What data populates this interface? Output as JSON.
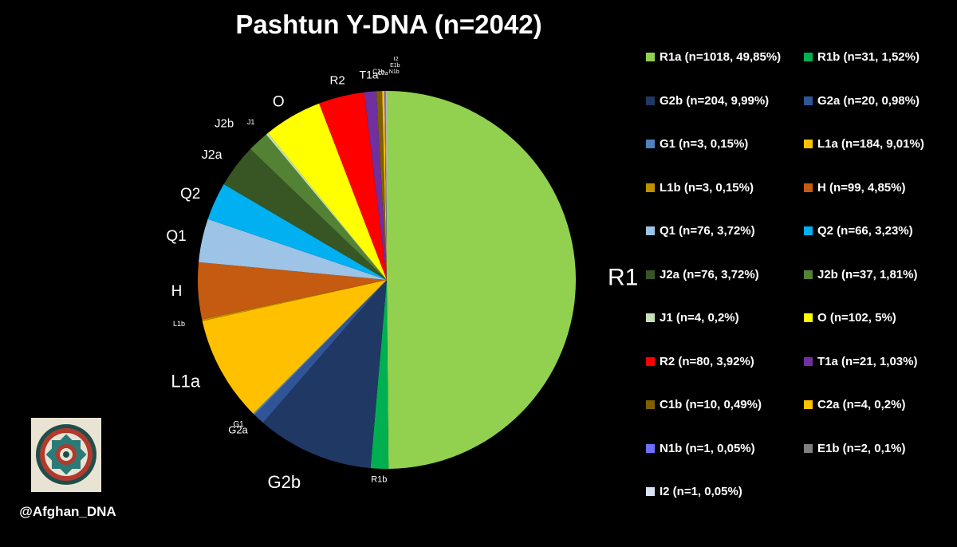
{
  "title": "Pashtun Y-DNA (n=2042)",
  "handle": "@Afghan_DNA",
  "chart_data": {
    "type": "pie",
    "title": "Pashtun Y-DNA (n=2042)",
    "total": 2042,
    "slices": [
      {
        "label": "R1a",
        "n": 1018,
        "percent": 49.85,
        "color": "#92d050",
        "legend": "R1a (n=1018, 49,85%)",
        "pie_label": "R1a"
      },
      {
        "label": "R1b",
        "n": 31,
        "percent": 1.52,
        "color": "#00b050",
        "legend": "R1b (n=31, 1,52%)",
        "pie_label": "R1b"
      },
      {
        "label": "G2b",
        "n": 204,
        "percent": 9.99,
        "color": "#203864",
        "legend": "G2b (n=204, 9,99%)",
        "pie_label": "G2b"
      },
      {
        "label": "G2a",
        "n": 20,
        "percent": 0.98,
        "color": "#2f5597",
        "legend": "G2a (n=20, 0,98%)",
        "pie_label": "G2a"
      },
      {
        "label": "G1",
        "n": 3,
        "percent": 0.15,
        "color": "#4f81bd",
        "legend": "G1 (n=3, 0,15%)",
        "pie_label": "G1"
      },
      {
        "label": "L1a",
        "n": 184,
        "percent": 9.01,
        "color": "#ffc000",
        "legend": "L1a (n=184, 9,01%)",
        "pie_label": "L1a"
      },
      {
        "label": "L1b",
        "n": 3,
        "percent": 0.15,
        "color": "#bf9000",
        "legend": "L1b (n=3, 0,15%)",
        "pie_label": "L1b"
      },
      {
        "label": "H",
        "n": 99,
        "percent": 4.85,
        "color": "#c55a11",
        "legend": "H (n=99, 4,85%)",
        "pie_label": "H"
      },
      {
        "label": "Q1",
        "n": 76,
        "percent": 3.72,
        "color": "#9dc3e6",
        "legend": "Q1 (n=76, 3,72%)",
        "pie_label": "Q1"
      },
      {
        "label": "Q2",
        "n": 66,
        "percent": 3.23,
        "color": "#00b0f0",
        "legend": "Q2 (n=66, 3,23%)",
        "pie_label": "Q2"
      },
      {
        "label": "J2a",
        "n": 76,
        "percent": 3.72,
        "color": "#375623",
        "legend": "J2a (n=76, 3,72%)",
        "pie_label": "J2a"
      },
      {
        "label": "J2b",
        "n": 37,
        "percent": 1.81,
        "color": "#548235",
        "legend": "J2b (n=37, 1,81%)",
        "pie_label": "J2b"
      },
      {
        "label": "J1",
        "n": 4,
        "percent": 0.2,
        "color": "#c5e0b4",
        "legend": "J1 (n=4, 0,2%)",
        "pie_label": "J1"
      },
      {
        "label": "O",
        "n": 102,
        "percent": 5,
        "color": "#ffff00",
        "legend": "O (n=102, 5%)",
        "pie_label": "O"
      },
      {
        "label": "R2",
        "n": 80,
        "percent": 3.92,
        "color": "#ff0000",
        "legend": "R2 (n=80, 3,92%)",
        "pie_label": "R2"
      },
      {
        "label": "T1a",
        "n": 21,
        "percent": 1.03,
        "color": "#7030a0",
        "legend": "T1a (n=21, 1,03%)",
        "pie_label": "T1a"
      },
      {
        "label": "C1b",
        "n": 10,
        "percent": 0.49,
        "color": "#7f6000",
        "legend": "C1b (n=10, 0,49%)",
        "pie_label": "C1b"
      },
      {
        "label": "C2a",
        "n": 4,
        "percent": 0.2,
        "color": "#ffc000",
        "legend": "C2a (n=4, 0,2%)",
        "pie_label": "C2a"
      },
      {
        "label": "N1b",
        "n": 1,
        "percent": 0.05,
        "color": "#6f6fff",
        "legend": "N1b (n=1, 0,05%)",
        "pie_label": "N1b"
      },
      {
        "label": "E1b",
        "n": 2,
        "percent": 0.1,
        "color": "#808080",
        "legend": "E1b (n=2, 0,1%)",
        "pie_label": "E1b"
      },
      {
        "label": "I2",
        "n": 1,
        "percent": 0.05,
        "color": "#dae3f3",
        "legend": "I2 (n=1, 0,05%)",
        "pie_label": "I2"
      }
    ],
    "legend_position": "right"
  }
}
